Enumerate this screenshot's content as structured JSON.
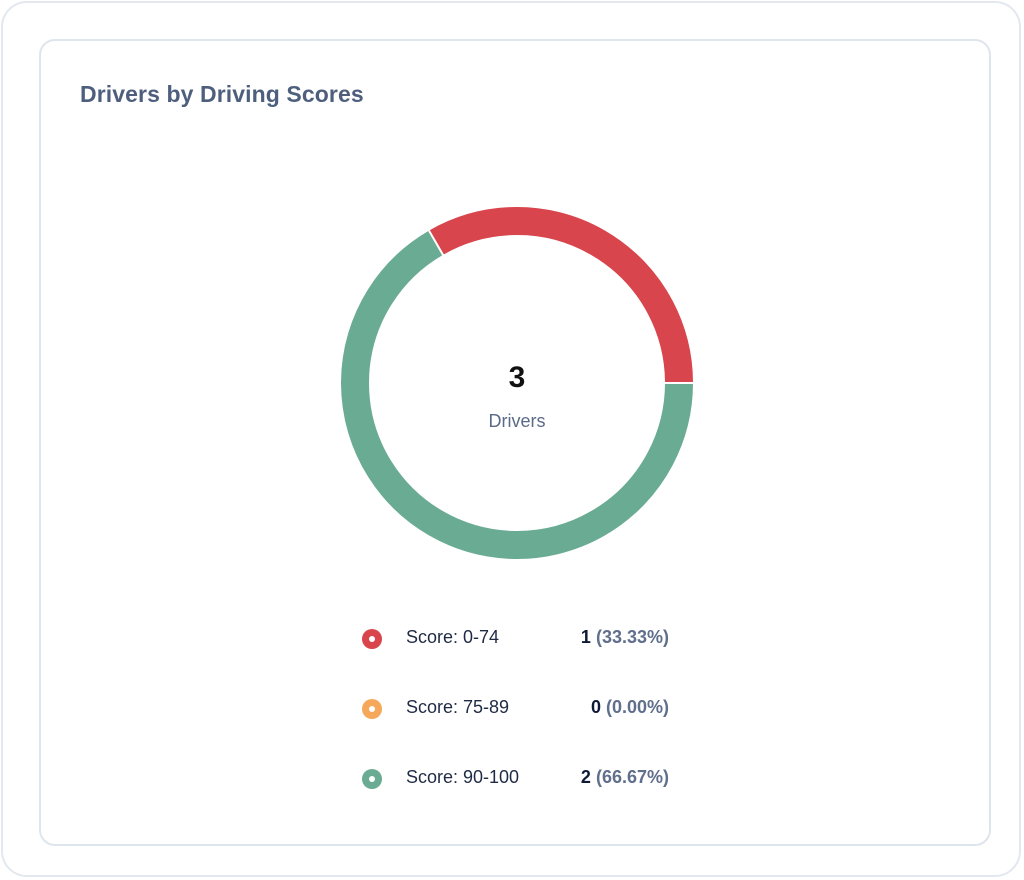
{
  "card": {
    "title": "Drivers by Driving Scores"
  },
  "donut": {
    "center_value": "3",
    "center_label": "Drivers"
  },
  "legend": [
    {
      "label": "Score: 0-74",
      "count": "1",
      "percent": "(33.33%)",
      "color": "#d9454d"
    },
    {
      "label": "Score: 75-89",
      "count": "0",
      "percent": "(0.00%)",
      "color": "#f5a85a"
    },
    {
      "label": "Score: 90-100",
      "count": "2",
      "percent": "(66.67%)",
      "color": "#6aab93"
    }
  ],
  "colors": {
    "title": "#4e5f7e",
    "border": "#dfe5ec",
    "red": "#d9454d",
    "orange": "#f5a85a",
    "green": "#6aab93"
  },
  "chart_data": {
    "type": "pie",
    "variant": "donut",
    "title": "Drivers by Driving Scores",
    "center_text": {
      "value": 3,
      "label": "Drivers"
    },
    "categories": [
      "Score: 0-74",
      "Score: 75-89",
      "Score: 90-100"
    ],
    "values": [
      1,
      0,
      2
    ],
    "percentages": [
      33.33,
      0.0,
      66.67
    ],
    "colors": [
      "#d9454d",
      "#f5a85a",
      "#6aab93"
    ],
    "total": 3,
    "legend_position": "bottom"
  }
}
